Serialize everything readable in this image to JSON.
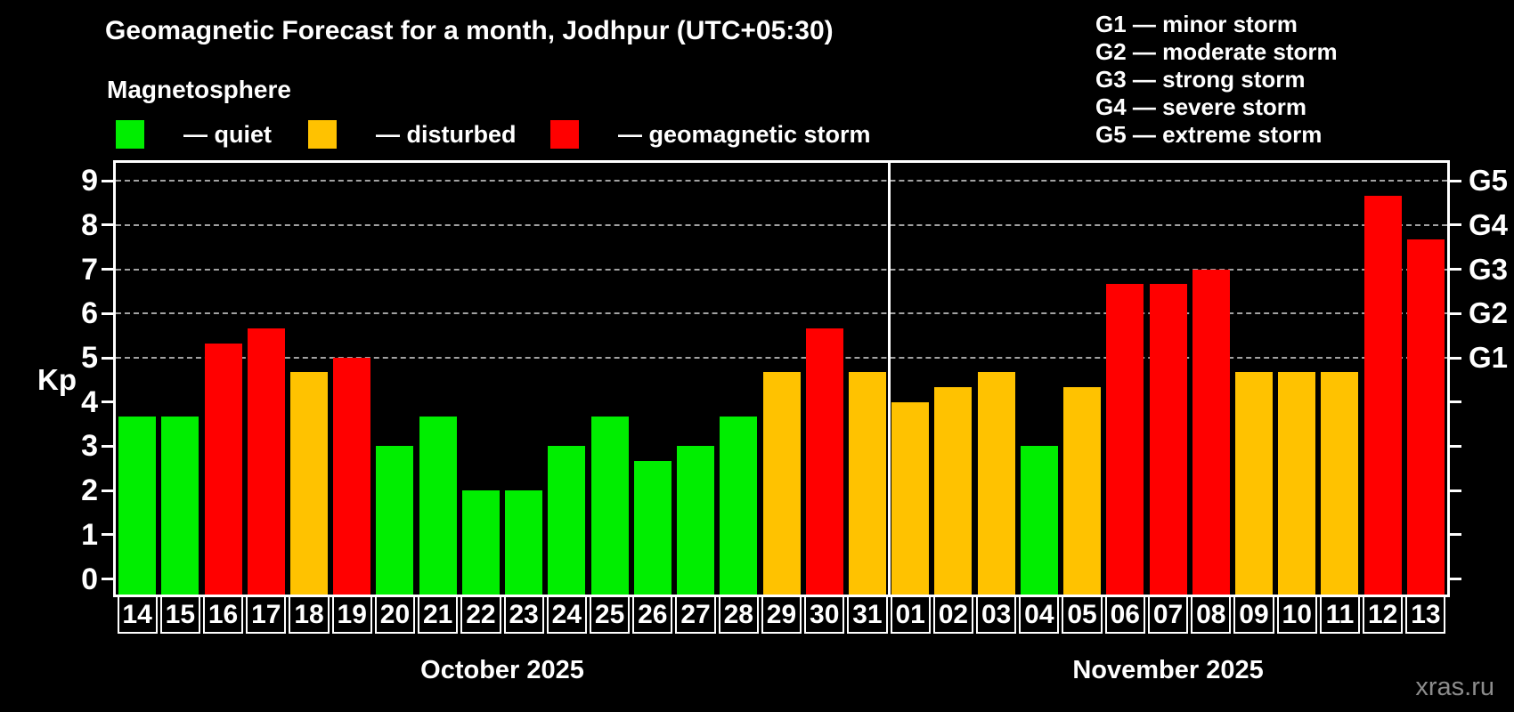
{
  "header": {
    "title": "Geomagnetic Forecast for a month, Jodhpur (UTC+05:30)",
    "subtitle": "Magnetosphere",
    "legend": [
      {
        "name": "quiet",
        "label": "— quiet",
        "color": "#00ee00"
      },
      {
        "name": "disturbed",
        "label": "— disturbed",
        "color": "#ffc200"
      },
      {
        "name": "storm",
        "label": "— geomagnetic storm",
        "color": "#ff0000"
      }
    ],
    "storm_scale": [
      "G1 — minor storm",
      "G2 — moderate storm",
      "G3 — strong storm",
      "G4 — severe storm",
      "G5 — extreme storm"
    ]
  },
  "axis": {
    "ylabel": "Kp",
    "y_ticks": [
      0,
      1,
      2,
      3,
      4,
      5,
      6,
      7,
      8,
      9
    ],
    "right_axis_labels": [
      {
        "kp": 5,
        "label": "G1"
      },
      {
        "kp": 6,
        "label": "G2"
      },
      {
        "kp": 7,
        "label": "G3"
      },
      {
        "kp": 8,
        "label": "G4"
      },
      {
        "kp": 9,
        "label": "G5"
      }
    ]
  },
  "watermark": "xras.ru",
  "chart_data": {
    "type": "bar",
    "title": "Geomagnetic Forecast for a month, Jodhpur (UTC+05:30)",
    "xlabel": "",
    "ylabel": "Kp",
    "ylim": [
      -0.36,
      9.42
    ],
    "gridlines_at": [
      5,
      6,
      7,
      8,
      9
    ],
    "grid": "horizontal dashed at storm levels only",
    "legend_position": "top-left",
    "status_colors": {
      "quiet": "#00ee00",
      "disturbed": "#ffc200",
      "storm": "#ff0000"
    },
    "months": [
      {
        "label": "October 2025",
        "days": [
          {
            "day": "14",
            "kp": 3.67,
            "status": "quiet"
          },
          {
            "day": "15",
            "kp": 3.67,
            "status": "quiet"
          },
          {
            "day": "16",
            "kp": 5.33,
            "status": "storm"
          },
          {
            "day": "17",
            "kp": 5.67,
            "status": "storm"
          },
          {
            "day": "18",
            "kp": 4.67,
            "status": "disturbed"
          },
          {
            "day": "19",
            "kp": 5.0,
            "status": "storm"
          },
          {
            "day": "20",
            "kp": 3.0,
            "status": "quiet"
          },
          {
            "day": "21",
            "kp": 3.67,
            "status": "quiet"
          },
          {
            "day": "22",
            "kp": 2.0,
            "status": "quiet"
          },
          {
            "day": "23",
            "kp": 2.0,
            "status": "quiet"
          },
          {
            "day": "24",
            "kp": 3.0,
            "status": "quiet"
          },
          {
            "day": "25",
            "kp": 3.67,
            "status": "quiet"
          },
          {
            "day": "26",
            "kp": 2.67,
            "status": "quiet"
          },
          {
            "day": "27",
            "kp": 3.0,
            "status": "quiet"
          },
          {
            "day": "28",
            "kp": 3.67,
            "status": "quiet"
          },
          {
            "day": "29",
            "kp": 4.67,
            "status": "disturbed"
          },
          {
            "day": "30",
            "kp": 5.67,
            "status": "storm"
          },
          {
            "day": "31",
            "kp": 4.67,
            "status": "disturbed"
          }
        ]
      },
      {
        "label": "November 2025",
        "days": [
          {
            "day": "01",
            "kp": 4.0,
            "status": "disturbed"
          },
          {
            "day": "02",
            "kp": 4.33,
            "status": "disturbed"
          },
          {
            "day": "03",
            "kp": 4.67,
            "status": "disturbed"
          },
          {
            "day": "04",
            "kp": 3.0,
            "status": "quiet"
          },
          {
            "day": "05",
            "kp": 4.33,
            "status": "disturbed"
          },
          {
            "day": "06",
            "kp": 6.67,
            "status": "storm"
          },
          {
            "day": "07",
            "kp": 6.67,
            "status": "storm"
          },
          {
            "day": "08",
            "kp": 7.0,
            "status": "storm"
          },
          {
            "day": "09",
            "kp": 4.67,
            "status": "disturbed"
          },
          {
            "day": "10",
            "kp": 4.67,
            "status": "disturbed"
          },
          {
            "day": "11",
            "kp": 4.67,
            "status": "disturbed"
          },
          {
            "day": "12",
            "kp": 8.67,
            "status": "storm"
          },
          {
            "day": "13",
            "kp": 7.67,
            "status": "storm"
          }
        ]
      }
    ]
  }
}
